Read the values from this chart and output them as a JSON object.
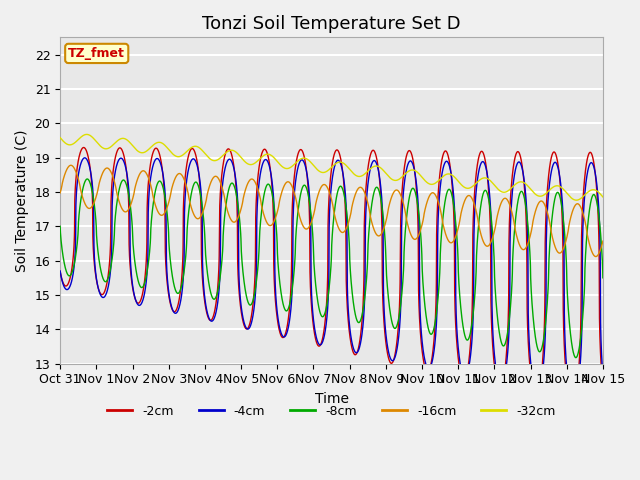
{
  "title": "Tonzi Soil Temperature Set D",
  "xlabel": "Time",
  "ylabel": "Soil Temperature (C)",
  "ylim": [
    13.0,
    22.5
  ],
  "yticks": [
    13.0,
    14.0,
    15.0,
    16.0,
    17.0,
    18.0,
    19.0,
    20.0,
    21.0,
    22.0
  ],
  "xlim_days": [
    0,
    15
  ],
  "xtick_labels": [
    "Oct 31",
    "Nov 1",
    "Nov 2",
    "Nov 3",
    "Nov 4",
    "Nov 5",
    "Nov 6",
    "Nov 7",
    "Nov 8",
    "Nov 9",
    "Nov 10",
    "Nov 11",
    "Nov 12",
    "Nov 13",
    "Nov 14",
    "Nov 15"
  ],
  "xtick_positions": [
    0,
    1,
    2,
    3,
    4,
    5,
    6,
    7,
    8,
    9,
    10,
    11,
    12,
    13,
    14,
    15
  ],
  "colors": {
    "-2cm": "#cc0000",
    "-4cm": "#0000cc",
    "-8cm": "#00aa00",
    "-16cm": "#dd8800",
    "-32cm": "#dddd00"
  },
  "legend_label": "TZ_fmet",
  "legend_box_color": "#ffffcc",
  "legend_box_edge": "#cc8800",
  "fig_facecolor": "#f0f0f0",
  "plot_bg_color": "#e8e8e8",
  "grid_color": "#ffffff",
  "title_fontsize": 13,
  "label_fontsize": 10,
  "tick_fontsize": 9
}
